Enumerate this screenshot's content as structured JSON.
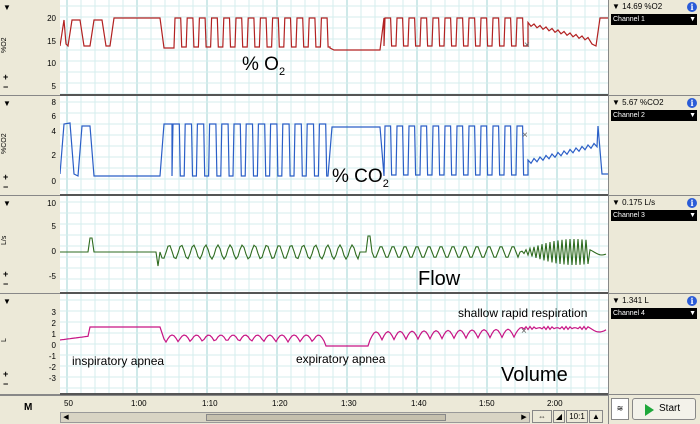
{
  "channels": [
    {
      "unit": "%O2",
      "reading": "14.69 %O2",
      "channel_name": "Channel 1",
      "label_main": "% O",
      "label_sub": "2",
      "ticks": [
        "20",
        "15",
        "10",
        "5"
      ],
      "color": "#b22222"
    },
    {
      "unit": "%CO2",
      "reading": "5.67 %CO2",
      "channel_name": "Channel 2",
      "label_main": "% CO",
      "label_sub": "2",
      "ticks": [
        "8",
        "6",
        "4",
        "2",
        "0"
      ],
      "color": "#2b5fc7"
    },
    {
      "unit": "L/s",
      "reading": "0.175 L/s",
      "channel_name": "Channel 3",
      "label_main": "Flow",
      "ticks": [
        "10",
        "5",
        "0",
        "-5"
      ],
      "color": "#2e6b1f"
    },
    {
      "unit": "L",
      "reading": "1.341 L",
      "channel_name": "Channel 4",
      "label_main": "Volume",
      "ticks": [
        "3",
        "2",
        "1",
        "0",
        "-1",
        "-2",
        "-3"
      ],
      "color": "#c71585"
    }
  ],
  "annotations": {
    "inspiratory": "inspiratory apnea",
    "expiratory": "expiratory apnea",
    "shallow": "shallow rapid respiration"
  },
  "time_axis": [
    "50",
    "1:00",
    "1:10",
    "1:20",
    "1:30",
    "1:40",
    "1:50",
    "2:00"
  ],
  "toolbar": {
    "zoom": "10:1",
    "start_label": "Start",
    "plus": "+",
    "minus": "−",
    "menu": "▼",
    "info": "i"
  }
}
